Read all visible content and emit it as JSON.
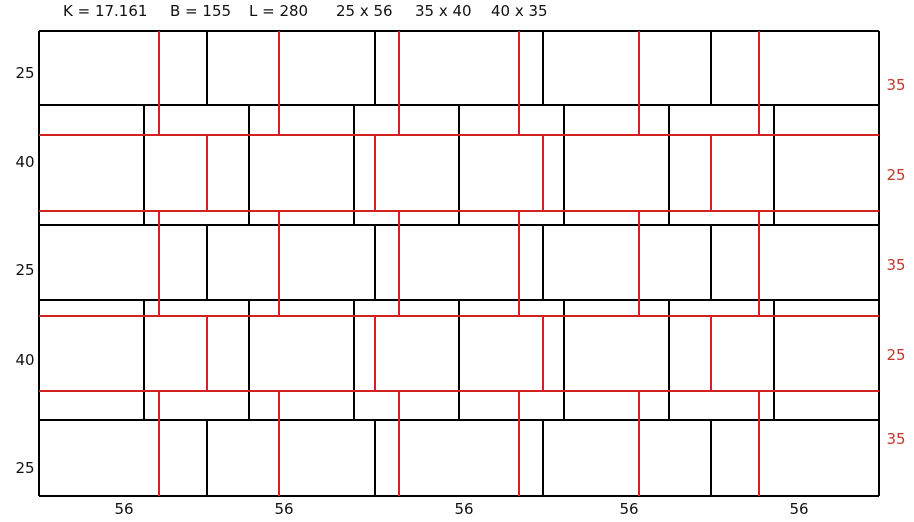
{
  "header": {
    "k": "K = 17.161",
    "b": "B = 155",
    "l": "L = 280",
    "size_a": "25 x 56",
    "size_b": "35 x 40",
    "size_c": "40 x 35"
  },
  "left_labels": [
    "25",
    "40",
    "25",
    "40",
    "25"
  ],
  "right_labels": [
    "35",
    "25",
    "35",
    "25",
    "35"
  ],
  "bottom_labels": [
    "56",
    "56",
    "56",
    "56",
    "56"
  ],
  "colors": {
    "black_grid": "#000000",
    "red_grid": "#d32020",
    "red_text": "#c0392b"
  }
}
